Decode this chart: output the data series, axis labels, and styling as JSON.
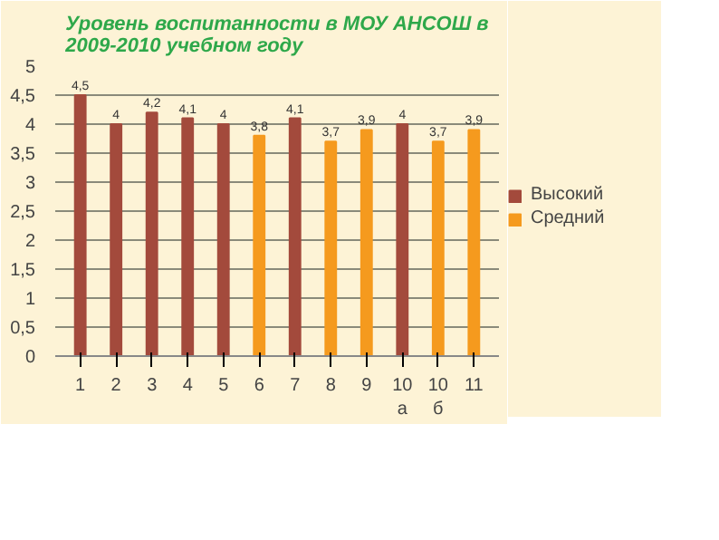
{
  "chart_data": {
    "type": "bar",
    "title": "Уровень воспитанности в МОУ АНСОШ в 2009-2010 учебном году",
    "categories": [
      "1",
      "2",
      "3",
      "4",
      "5",
      "6",
      "7",
      "8",
      "9",
      "10 а",
      "10 б",
      "11"
    ],
    "series": [
      {
        "name": "Средний",
        "color": "#f59a1e",
        "values": [
          null,
          null,
          null,
          null,
          null,
          3.8,
          null,
          3.7,
          3.9,
          null,
          3.7,
          3.9
        ],
        "value_labels": [
          null,
          null,
          null,
          null,
          null,
          "3,8",
          null,
          "3,7",
          "3,9",
          null,
          "3,7",
          "3,9"
        ]
      },
      {
        "name": "Высокий",
        "color": "#a34a3c",
        "values": [
          4.5,
          4,
          4.2,
          4.1,
          4,
          null,
          4.1,
          null,
          null,
          4,
          null,
          null
        ],
        "value_labels": [
          "4,5",
          "4",
          "4,2",
          "4,1",
          "4",
          null,
          "4,1",
          null,
          null,
          "4",
          null,
          null
        ]
      }
    ],
    "ylim": [
      0,
      5
    ],
    "yticks": [
      0,
      {
        "value": 0.5,
        "label": "0,5"
      },
      1,
      {
        "value": 1.5,
        "label": "1,5"
      },
      2,
      {
        "value": 2.5,
        "label": "2,5"
      },
      3,
      {
        "value": 3.5,
        "label": "3,5"
      },
      4,
      {
        "value": 4.5,
        "label": "4,5"
      },
      5
    ],
    "grid": "y",
    "legend": "right"
  }
}
